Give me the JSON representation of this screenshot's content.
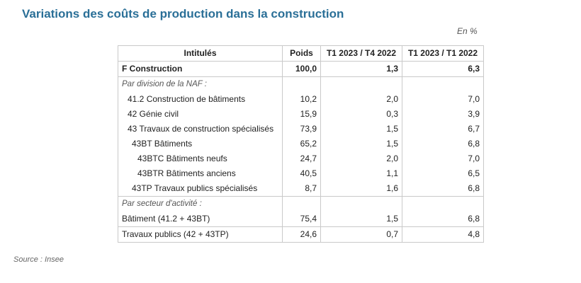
{
  "title": "Variations des coûts de production dans la construction",
  "unit": "En %",
  "table": {
    "headers": [
      "Intitulés",
      "Poids",
      "T1 2023 / T4 2022",
      "T1 2023 / T1 2022"
    ],
    "rows": [
      {
        "label": "F Construction",
        "poids": "100,0",
        "v1": "1,3",
        "v2": "6,3"
      },
      {
        "label": "Par division de la NAF :"
      },
      {
        "label": "41.2 Construction de bâtiments",
        "poids": "10,2",
        "v1": "2,0",
        "v2": "7,0"
      },
      {
        "label": "42 Génie civil",
        "poids": "15,9",
        "v1": "0,3",
        "v2": "3,9"
      },
      {
        "label": "43 Travaux de construction spécialisés",
        "poids": "73,9",
        "v1": "1,5",
        "v2": "6,7"
      },
      {
        "label": "43BT Bâtiments",
        "poids": "65,2",
        "v1": "1,5",
        "v2": "6,8"
      },
      {
        "label": "43BTC Bâtiments neufs",
        "poids": "24,7",
        "v1": "2,0",
        "v2": "7,0"
      },
      {
        "label": "43BTR Bâtiments anciens",
        "poids": "40,5",
        "v1": "1,1",
        "v2": "6,5"
      },
      {
        "label": "43TP Travaux publics spécialisés",
        "poids": "8,7",
        "v1": "1,6",
        "v2": "6,8"
      },
      {
        "label": "Par secteur d'activité :"
      },
      {
        "label": "Bâtiment (41.2 + 43BT)",
        "poids": "75,4",
        "v1": "1,5",
        "v2": "6,8"
      },
      {
        "label": "Travaux publics (42 + 43TP)",
        "poids": "24,6",
        "v1": "0,7",
        "v2": "4,8"
      }
    ]
  },
  "source": "Source : Insee"
}
